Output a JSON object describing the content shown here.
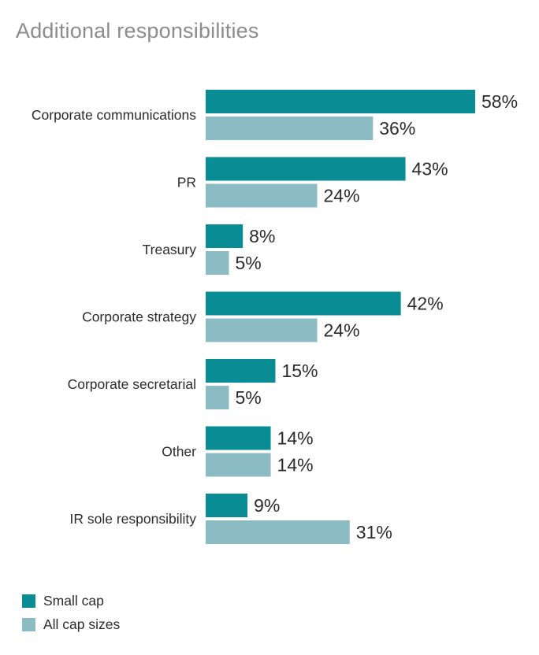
{
  "title": "Additional responsibilities",
  "colors": {
    "small_cap": "#0a8c94",
    "all_cap": "#8cbcc3"
  },
  "chart_data": {
    "type": "bar",
    "orientation": "horizontal",
    "categories": [
      "Corporate communications",
      "PR",
      "Treasury",
      "Corporate strategy",
      "Corporate secretarial",
      "Other",
      "IR sole responsibility"
    ],
    "series": [
      {
        "name": "Small cap",
        "values": [
          58,
          43,
          8,
          42,
          15,
          14,
          9
        ]
      },
      {
        "name": "All cap sizes",
        "values": [
          36,
          24,
          5,
          24,
          5,
          14,
          31
        ]
      }
    ],
    "value_suffix": "%",
    "xlim": [
      0,
      58
    ],
    "grid": false,
    "legend_position": "bottom-left"
  }
}
